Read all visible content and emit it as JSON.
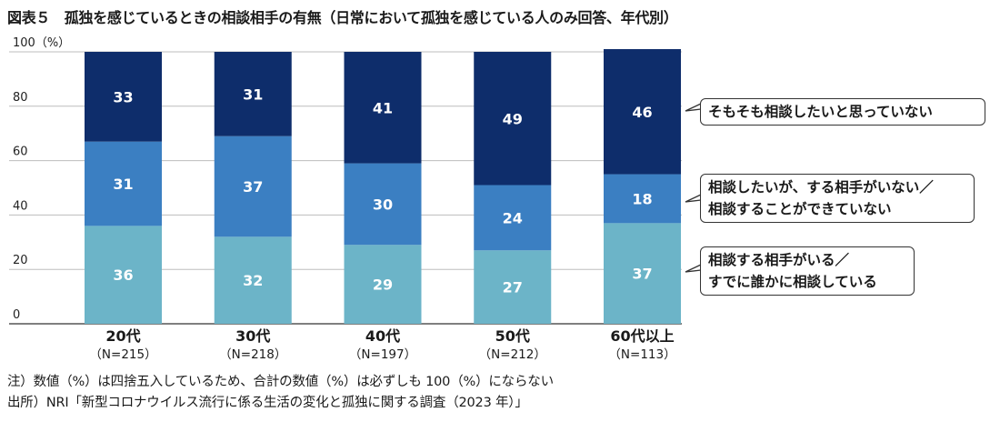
{
  "title": "図表５　孤独を感じているときの相談相手の有無（日常において孤独を感じている人のみ回答、年代別）",
  "notes": [
    "注）数値（%）は四捨五入しているため、合計の数値（%）は必ずしも 100（%）にならない",
    "出所）NRI「新型コロナウイルス流行に係る生活の変化と孤独に関する調査（2023 年）」"
  ],
  "chart_data": {
    "type": "bar",
    "stacked": true,
    "title": "図表５　孤独を感じているときの相談相手の有無（日常において孤独を感じている人のみ回答、年代別）",
    "ylabel": "",
    "y_unit_label": "（%）",
    "ylim": [
      0,
      100
    ],
    "yticks": [
      0,
      20,
      40,
      60,
      80,
      100
    ],
    "grid": true,
    "legend_placement": "right",
    "categories": [
      "20代",
      "30代",
      "40代",
      "50代",
      "60代以上"
    ],
    "category_sublabels": [
      "（N=215）",
      "（N=218）",
      "（N=197）",
      "（N=212）",
      "（N=113）"
    ],
    "series": [
      {
        "name": "相談する相手がいる／すでに誰かに相談している",
        "color": "#6cb4c8",
        "values": [
          36,
          32,
          29,
          27,
          37
        ]
      },
      {
        "name": "相談したいが、する相手がいない／相談することができていない",
        "color": "#3b7fc2",
        "values": [
          31,
          37,
          30,
          24,
          18
        ]
      },
      {
        "name": "そもそも相談したいと思っていない",
        "color": "#0e2d6b",
        "values": [
          33,
          31,
          41,
          49,
          46
        ]
      }
    ],
    "legend_lines": [
      [
        "相談する相手がいる／",
        "すでに誰かに相談している"
      ],
      [
        "相談したいが、する相手がいない／",
        "相談することができていない"
      ],
      [
        "そもそも相談したいと思っていない"
      ]
    ]
  }
}
